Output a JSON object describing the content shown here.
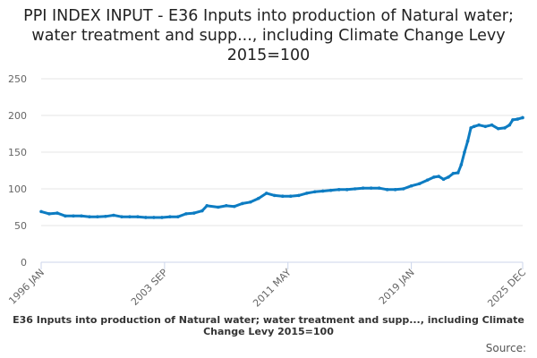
{
  "chart_data": {
    "type": "line",
    "title": "PPI INDEX INPUT - E36 Inputs into production of Natural water; water treatment and supp..., including Climate Change Levy 2015=100",
    "xlabel": "",
    "ylabel": "",
    "ylim": [
      0,
      250
    ],
    "xlim": [
      1996.0,
      2025.917
    ],
    "y_ticks": [
      "0",
      "50",
      "100",
      "150",
      "200",
      "250"
    ],
    "x_ticks": [
      {
        "label": "1996 JAN",
        "value": 1996.0
      },
      {
        "label": "2003 SEP",
        "value": 2003.667
      },
      {
        "label": "2011 MAY",
        "value": 2011.333
      },
      {
        "label": "2019 JAN",
        "value": 2019.0
      },
      {
        "label": "2025 DEC",
        "value": 2025.917
      }
    ],
    "grid": true,
    "legend": "bottom",
    "series": [
      {
        "name": "E36 Inputs into production of Natural water; water treatment and supp..., including Climate Change Levy 2015=100",
        "color": "#0d7cc2",
        "x": [
          1996.0,
          1996.5,
          1997.0,
          1997.5,
          1998.0,
          1998.5,
          1999.0,
          1999.5,
          2000.0,
          2000.5,
          2001.0,
          2001.5,
          2002.0,
          2002.5,
          2003.0,
          2003.5,
          2004.0,
          2004.5,
          2005.0,
          2005.5,
          2006.0,
          2006.3,
          2007.0,
          2007.5,
          2008.0,
          2008.5,
          2009.0,
          2009.5,
          2010.0,
          2010.5,
          2011.0,
          2011.5,
          2012.0,
          2012.5,
          2013.0,
          2013.5,
          2014.0,
          2014.5,
          2015.0,
          2015.5,
          2016.0,
          2016.5,
          2017.0,
          2017.5,
          2018.0,
          2018.5,
          2019.0,
          2019.5,
          2020.0,
          2020.4,
          2020.7,
          2021.0,
          2021.3,
          2021.6,
          2021.9,
          2022.1,
          2022.3,
          2022.5,
          2022.7,
          2022.9,
          2023.2,
          2023.6,
          2024.0,
          2024.4,
          2024.8,
          2025.1,
          2025.3,
          2025.6,
          2025.917
        ],
        "values": [
          69,
          66,
          67,
          63,
          63,
          63,
          62,
          62,
          62.5,
          64,
          62,
          62,
          62,
          61,
          61,
          61,
          62,
          62,
          66,
          67,
          70,
          77,
          75,
          77,
          76,
          80,
          82,
          87,
          94,
          91,
          90,
          90,
          91,
          94,
          96,
          97,
          98,
          99,
          99,
          100,
          101,
          101,
          101,
          99,
          99,
          100,
          104,
          107,
          112,
          116,
          117,
          113,
          116,
          121,
          122,
          133,
          150,
          165,
          183,
          185,
          187,
          185,
          187,
          182,
          183,
          187,
          194,
          195,
          197
        ]
      }
    ]
  },
  "legend_label": "E36 Inputs into production of Natural water; water treatment and supp..., including Climate Change Levy 2015=100",
  "source_label": "Source:"
}
